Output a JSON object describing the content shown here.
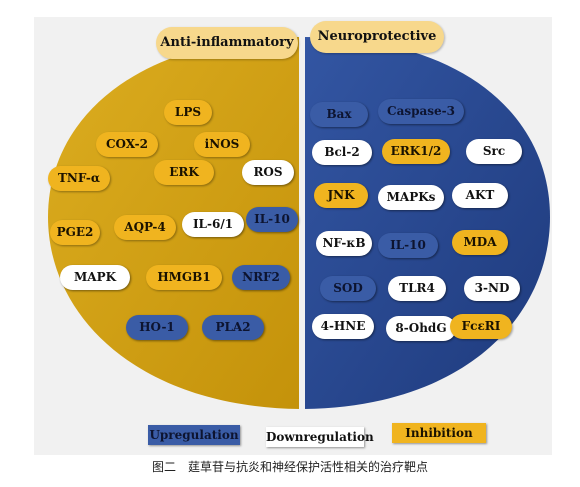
{
  "colors": {
    "upregulation": "#3a5ca6",
    "downregulation": "#ffffff",
    "inhibition": "#f0b41f",
    "left_half": "#d4a212",
    "right_half": "#28478d"
  },
  "headers": {
    "left": "Anti-inflammatory",
    "right": "Neuroprotective"
  },
  "left_items": [
    {
      "label": "LPS",
      "type": "inhibition"
    },
    {
      "label": "COX-2",
      "type": "inhibition"
    },
    {
      "label": "iNOS",
      "type": "inhibition"
    },
    {
      "label": "TNF-α",
      "type": "inhibition"
    },
    {
      "label": "ERK",
      "type": "inhibition"
    },
    {
      "label": "ROS",
      "type": "downregulation"
    },
    {
      "label": "PGE2",
      "type": "inhibition"
    },
    {
      "label": "AQP-4",
      "type": "inhibition"
    },
    {
      "label": "IL-6/1",
      "type": "downregulation"
    },
    {
      "label": "IL-10",
      "type": "upregulation"
    },
    {
      "label": "MAPK",
      "type": "downregulation"
    },
    {
      "label": "HMGB1",
      "type": "inhibition"
    },
    {
      "label": "NRF2",
      "type": "upregulation"
    },
    {
      "label": "HO-1",
      "type": "upregulation"
    },
    {
      "label": "PLA2",
      "type": "upregulation"
    }
  ],
  "right_items": [
    {
      "label": "Bax",
      "type": "upregulation"
    },
    {
      "label": "Caspase-3",
      "type": "upregulation"
    },
    {
      "label": "Bcl-2",
      "type": "downregulation"
    },
    {
      "label": "ERK1/2",
      "type": "inhibition"
    },
    {
      "label": "Src",
      "type": "downregulation"
    },
    {
      "label": "JNK",
      "type": "inhibition"
    },
    {
      "label": "MAPKs",
      "type": "downregulation"
    },
    {
      "label": "AKT",
      "type": "downregulation"
    },
    {
      "label": "NF-κB",
      "type": "downregulation"
    },
    {
      "label": "IL-10",
      "type": "upregulation"
    },
    {
      "label": "MDA",
      "type": "inhibition"
    },
    {
      "label": "SOD",
      "type": "upregulation"
    },
    {
      "label": "TLR4",
      "type": "downregulation"
    },
    {
      "label": "3-ND",
      "type": "downregulation"
    },
    {
      "label": "4-HNE",
      "type": "downregulation"
    },
    {
      "label": "8-OhdG",
      "type": "downregulation"
    },
    {
      "label": "FcεRI",
      "type": "inhibition"
    }
  ],
  "legend": {
    "upregulation": "Upregulation",
    "downregulation": "Downregulation",
    "inhibition": "Inhibition"
  },
  "caption": "图二　莛草苷与抗炎和神经保护活性相关的治疗靶点"
}
